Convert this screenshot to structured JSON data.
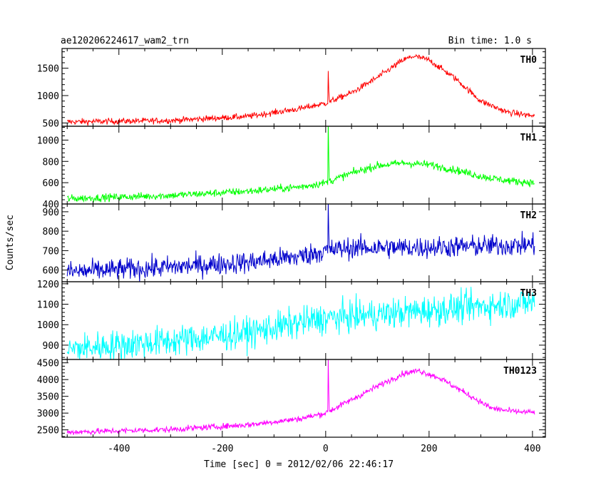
{
  "header": {
    "file_name": "ae120206224617_wam2_trn",
    "bin_time": "Bin time: 1.0 s"
  },
  "chart_data": {
    "type": "line",
    "xlabel": "Time [sec] 0 = 2012/02/06 22:46:17",
    "ylabel": "Counts/sec",
    "xlim": [
      -510,
      425
    ],
    "x_ticks": [
      -400,
      -200,
      0,
      200,
      400
    ],
    "bin_time_s": 1.0,
    "panels": [
      {
        "name": "TH0",
        "color": "#ff0000",
        "ylim": [
          440,
          1860
        ],
        "y_ticks": [
          500,
          1000,
          1500
        ],
        "noise": 28,
        "profile": [
          [
            -500,
            520
          ],
          [
            -300,
            545
          ],
          [
            -150,
            620
          ],
          [
            -50,
            760
          ],
          [
            0,
            860
          ],
          [
            50,
            1050
          ],
          [
            100,
            1330
          ],
          [
            150,
            1650
          ],
          [
            170,
            1720
          ],
          [
            200,
            1650
          ],
          [
            250,
            1320
          ],
          [
            300,
            900
          ],
          [
            350,
            700
          ],
          [
            400,
            630
          ]
        ],
        "spike": {
          "x": 5,
          "value": 1450
        }
      },
      {
        "name": "TH1",
        "color": "#00ff00",
        "ylim": [
          400,
          1130
        ],
        "y_ticks": [
          400,
          600,
          800,
          1000
        ],
        "noise": 18,
        "profile": [
          [
            -500,
            450
          ],
          [
            -300,
            480
          ],
          [
            -150,
            520
          ],
          [
            -50,
            560
          ],
          [
            0,
            600
          ],
          [
            50,
            690
          ],
          [
            100,
            760
          ],
          [
            150,
            785
          ],
          [
            200,
            770
          ],
          [
            250,
            720
          ],
          [
            300,
            660
          ],
          [
            350,
            620
          ],
          [
            400,
            600
          ]
        ],
        "spike": {
          "x": 5,
          "value": 1180
        }
      },
      {
        "name": "TH2",
        "color": "#0000cc",
        "ylim": [
          540,
          940
        ],
        "y_ticks": [
          600,
          700,
          800,
          900
        ],
        "noise": 28,
        "profile": [
          [
            -500,
            590
          ],
          [
            -300,
            615
          ],
          [
            -150,
            640
          ],
          [
            -50,
            670
          ],
          [
            0,
            700
          ],
          [
            50,
            715
          ],
          [
            150,
            715
          ],
          [
            250,
            720
          ],
          [
            400,
            730
          ]
        ],
        "spike": {
          "x": 5,
          "value": 950
        }
      },
      {
        "name": "TH3",
        "color": "#00ffff",
        "ylim": [
          830,
          1210
        ],
        "y_ticks": [
          900,
          1000,
          1100,
          1200
        ],
        "noise": 38,
        "profile": [
          [
            -500,
            880
          ],
          [
            -300,
            920
          ],
          [
            -150,
            960
          ],
          [
            -50,
            1010
          ],
          [
            0,
            1030
          ],
          [
            100,
            1050
          ],
          [
            200,
            1070
          ],
          [
            300,
            1090
          ],
          [
            400,
            1110
          ]
        ],
        "spike": null
      },
      {
        "name": "TH0123",
        "color": "#ff00ff",
        "ylim": [
          2280,
          4600
        ],
        "y_ticks": [
          2500,
          3000,
          3500,
          4000,
          4500
        ],
        "noise": 45,
        "profile": [
          [
            -500,
            2430
          ],
          [
            -300,
            2510
          ],
          [
            -150,
            2650
          ],
          [
            -50,
            2830
          ],
          [
            0,
            3000
          ],
          [
            50,
            3400
          ],
          [
            100,
            3800
          ],
          [
            150,
            4180
          ],
          [
            180,
            4270
          ],
          [
            220,
            4050
          ],
          [
            270,
            3600
          ],
          [
            320,
            3150
          ],
          [
            360,
            3050
          ],
          [
            400,
            3020
          ]
        ],
        "spike": {
          "x": 5,
          "value": 4600
        }
      }
    ]
  }
}
